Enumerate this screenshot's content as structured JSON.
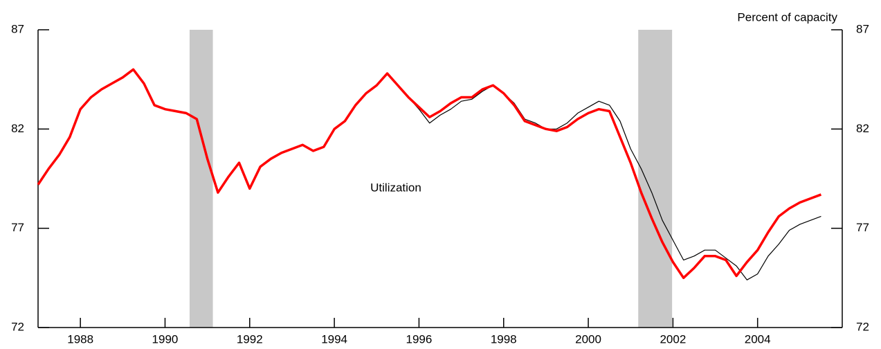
{
  "chart_data": {
    "type": "line",
    "title": "Percent of capacity",
    "annotations": [
      "Utilization"
    ],
    "x": [
      1987.0,
      1987.25,
      1987.5,
      1987.75,
      1988.0,
      1988.25,
      1988.5,
      1988.75,
      1989.0,
      1989.25,
      1989.5,
      1989.75,
      1990.0,
      1990.25,
      1990.5,
      1990.75,
      1991.0,
      1991.25,
      1991.5,
      1991.75,
      1992.0,
      1992.25,
      1992.5,
      1992.75,
      1993.0,
      1993.25,
      1993.5,
      1993.75,
      1994.0,
      1994.25,
      1994.5,
      1994.75,
      1995.0,
      1995.25,
      1995.5,
      1995.75,
      1996.0,
      1996.25,
      1996.5,
      1996.75,
      1997.0,
      1997.25,
      1997.5,
      1997.75,
      1998.0,
      1998.25,
      1998.5,
      1998.75,
      1999.0,
      1999.25,
      1999.5,
      1999.75,
      2000.0,
      2000.25,
      2000.5,
      2000.75,
      2001.0,
      2001.25,
      2001.5,
      2001.75,
      2002.0,
      2002.25,
      2002.5,
      2002.75,
      2003.0,
      2003.25,
      2003.5,
      2003.75,
      2004.0,
      2004.25,
      2004.5,
      2004.75,
      2005.0,
      2005.25,
      2005.5
    ],
    "series": [
      {
        "color": "#000000",
        "width": 1.2,
        "values": [
          79.2,
          80.0,
          80.7,
          81.6,
          83.0,
          83.6,
          84.0,
          84.3,
          84.6,
          85.0,
          84.3,
          83.2,
          83.0,
          82.9,
          82.8,
          82.5,
          80.5,
          78.8,
          79.6,
          80.3,
          79.0,
          80.1,
          80.5,
          80.8,
          81.0,
          81.2,
          80.9,
          81.1,
          82.0,
          82.4,
          83.2,
          83.8,
          84.2,
          84.8,
          84.2,
          83.6,
          83.0,
          82.3,
          82.7,
          83.0,
          83.4,
          83.5,
          83.9,
          84.2,
          83.8,
          83.3,
          82.5,
          82.3,
          82.0,
          82.0,
          82.3,
          82.8,
          83.1,
          83.4,
          83.2,
          82.4,
          81.0,
          80.0,
          78.8,
          77.4,
          76.4,
          75.4,
          75.6,
          75.9,
          75.9,
          75.5,
          75.1,
          74.4,
          74.7,
          75.6,
          76.2,
          76.9,
          77.2,
          77.4,
          77.6
        ]
      },
      {
        "color": "#ff0000",
        "width": 3.5,
        "values": [
          79.2,
          80.0,
          80.7,
          81.6,
          83.0,
          83.6,
          84.0,
          84.3,
          84.6,
          85.0,
          84.3,
          83.2,
          83.0,
          82.9,
          82.8,
          82.5,
          80.5,
          78.8,
          79.6,
          80.3,
          79.0,
          80.1,
          80.5,
          80.8,
          81.0,
          81.2,
          80.9,
          81.1,
          82.0,
          82.4,
          83.2,
          83.8,
          84.2,
          84.8,
          84.2,
          83.6,
          83.1,
          82.6,
          82.9,
          83.3,
          83.6,
          83.6,
          84.0,
          84.2,
          83.8,
          83.2,
          82.4,
          82.2,
          82.0,
          81.9,
          82.1,
          82.5,
          82.8,
          83.0,
          82.9,
          81.6,
          80.3,
          78.8,
          77.5,
          76.3,
          75.3,
          74.5,
          75.0,
          75.6,
          75.6,
          75.4,
          74.6,
          75.3,
          75.9,
          76.8,
          77.6,
          78.0,
          78.3,
          78.5,
          78.7
        ]
      }
    ],
    "shading": [
      [
        1990.58,
        1991.13
      ],
      [
        2001.18,
        2001.98
      ]
    ],
    "shading_color": "#c8c8c8",
    "xlim": [
      1987,
      2006
    ],
    "xticks": [
      1988,
      1990,
      1992,
      1994,
      1996,
      1998,
      2000,
      2002,
      2004
    ],
    "ylim": [
      72,
      87
    ],
    "yticks": [
      72,
      77,
      82,
      87
    ],
    "y2lim": [
      72,
      87
    ],
    "y2ticks": [
      72,
      77,
      82,
      87
    ]
  }
}
